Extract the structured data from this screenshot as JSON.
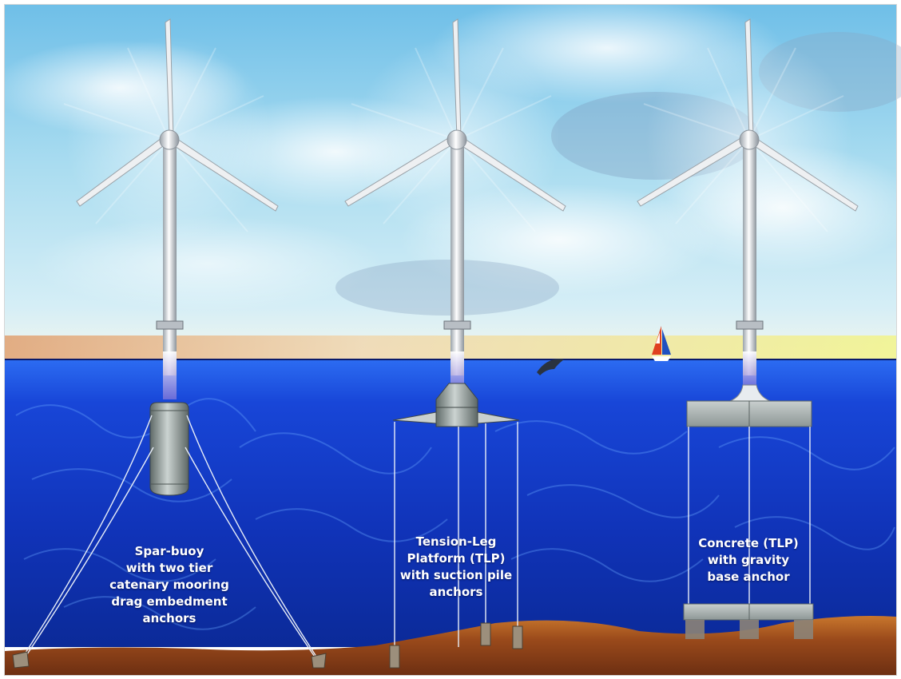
{
  "turbines": [
    {
      "id": "spar-buoy",
      "caption_lines": [
        "Spar-buoy",
        "with two tier",
        "catenary mooring",
        "drag embedment",
        "anchors"
      ]
    },
    {
      "id": "tension-leg-platform",
      "caption_lines": [
        "Tension-Leg",
        "Platform (TLP)",
        "with suction pile",
        "anchors"
      ]
    },
    {
      "id": "concrete-tlp",
      "caption_lines": [
        "Concrete (TLP)",
        "with gravity",
        "base anchor"
      ]
    }
  ],
  "colors": {
    "sky_top": "#7fc6ea",
    "sky_horizon": "#e8f3f7",
    "sea_surface": "#1a4fe0",
    "sea_deep": "#0a2a9a",
    "seabed": "#a0521d",
    "tower": "#e6e8ea",
    "float": "#8f9a98",
    "concrete": "#b7bfbe"
  }
}
